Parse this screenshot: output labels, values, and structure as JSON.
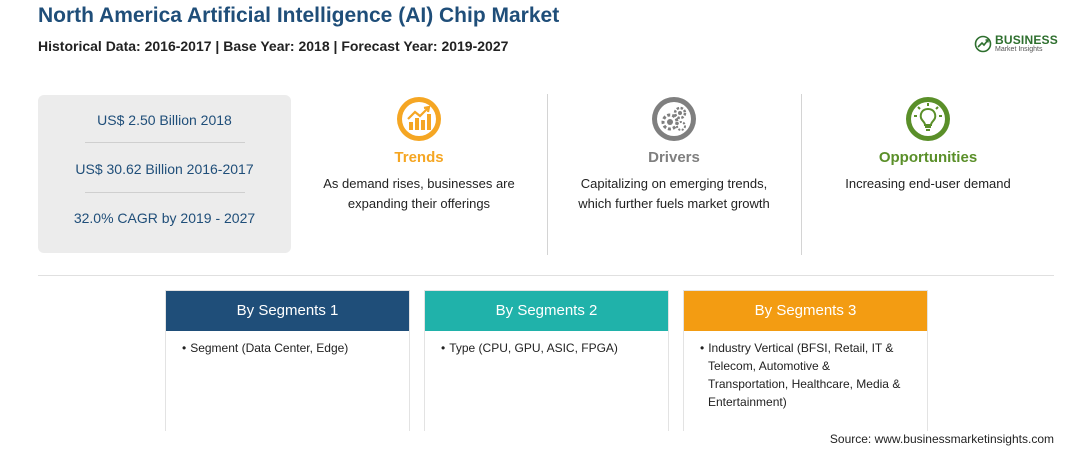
{
  "header": {
    "title": "North America Artificial Intelligence (AI) Chip Market",
    "subtitle": "Historical Data: 2016-2017 | Base Year: 2018 | Forecast Year: 2019-2027"
  },
  "logo": {
    "main": "BUSINESS",
    "sub": "Market Insights",
    "icon": "globe-icon",
    "color": "#2e6f2e"
  },
  "stats": [
    "US$ 2.50 Billion 2018",
    "US$ 30.62 Billion 2016-2017",
    "32.0% CAGR by 2019 - 2027"
  ],
  "features": {
    "trends": {
      "title": "Trends",
      "text_line1": "As demand rises, businesses are",
      "text_line2": "expanding their offerings",
      "icon": "chart-growth-icon",
      "color": "#f5a623"
    },
    "drivers": {
      "title": "Drivers",
      "text_line1": "Capitalizing on emerging trends,",
      "text_line2": "which further fuels market growth",
      "icon": "gears-icon",
      "color": "#7f7f7f"
    },
    "opportunities": {
      "title": "Opportunities",
      "text_line1": "Increasing end-user demand",
      "icon": "lightbulb-icon",
      "color": "#5a8f29"
    }
  },
  "segments": [
    {
      "header": "By Segments 1",
      "color": "#1f4e79",
      "bullet": "•",
      "lines": [
        "Segment (Data Center, Edge)"
      ]
    },
    {
      "header": "By Segments 2",
      "color": "#20b2aa",
      "bullet": "•",
      "lines": [
        "Type (CPU, GPU, ASIC, FPGA)"
      ]
    },
    {
      "header": "By Segments 3",
      "color": "#f39c12",
      "bullet": "•",
      "lines": [
        "Industry Vertical (BFSI, Retail, IT &",
        "Telecom, Automotive &",
        "Transportation, Healthcare, Media &",
        "Entertainment)"
      ]
    }
  ],
  "source": "Source: www.businessmarketinsights.com"
}
